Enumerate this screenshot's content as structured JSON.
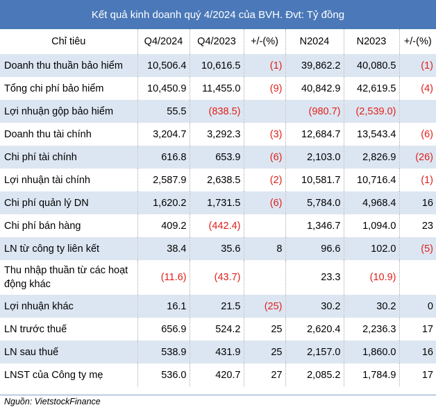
{
  "title": "Kết quả kinh doanh quý 4/2024 của BVH. Đvt: Tỷ đồng",
  "columns": [
    "Chỉ tiêu",
    "Q4/2024",
    "Q4/2023",
    "+/-(%)",
    "N2024",
    "N2023",
    "+/-(%)"
  ],
  "rows": [
    [
      "Doanh thu thuần bảo hiểm",
      "10,506.4",
      "10,616.5",
      "(1)",
      "39,862.2",
      "40,080.5",
      "(1)"
    ],
    [
      "Tổng chi phí bảo hiểm",
      "10,450.9",
      "11,455.0",
      "(9)",
      "40,842.9",
      "42,619.5",
      "(4)"
    ],
    [
      "Lợi nhuận gộp  bảo hiểm",
      "55.5",
      "(838.5)",
      "",
      "(980.7)",
      "(2,539.0)",
      ""
    ],
    [
      "Doanh thu tài chính",
      "3,204.7",
      "3,292.3",
      "(3)",
      "12,684.7",
      "13,543.4",
      "(6)"
    ],
    [
      "Chi phí tài chính",
      "616.8",
      "653.9",
      "(6)",
      "2,103.0",
      "2,826.9",
      "(26)"
    ],
    [
      "Lợi nhuận tài chính",
      "2,587.9",
      "2,638.5",
      "(2)",
      "10,581.7",
      "10,716.4",
      "(1)"
    ],
    [
      "Chi phí quản lý DN",
      "1,620.2",
      "1,731.5",
      "(6)",
      "5,784.0",
      "4,968.4",
      "16"
    ],
    [
      "Chi phí bán hàng",
      "409.2",
      "(442.4)",
      "",
      "1,346.7",
      "1,094.0",
      "23"
    ],
    [
      "LN từ công ty liên kết",
      "38.4",
      "35.6",
      "8",
      "96.6",
      "102.0",
      "(5)"
    ],
    [
      "Thu nhập thuần từ các hoạt động khác",
      "(11.6)",
      "(43.7)",
      "",
      "23.3",
      "(10.9)",
      ""
    ],
    [
      "Lợi nhuận khác",
      "16.1",
      "21.5",
      "(25)",
      "30.2",
      "30.2",
      "0"
    ],
    [
      "LN trước thuế",
      "656.9",
      "524.2",
      "25",
      "2,620.4",
      "2,236.3",
      "17"
    ],
    [
      "LN sau thuế",
      "538.9",
      "431.9",
      "25",
      "2,157.0",
      "1,860.0",
      "16"
    ],
    [
      "LNST của Công ty mẹ",
      "536.0",
      "420.7",
      "27",
      "2,085.2",
      "1,784.9",
      "17"
    ]
  ],
  "source": "Nguồn: VietstockFinance",
  "colors": {
    "header": "#4a78b8",
    "stripe": "#dce6f2",
    "negative": "#e0201a"
  }
}
